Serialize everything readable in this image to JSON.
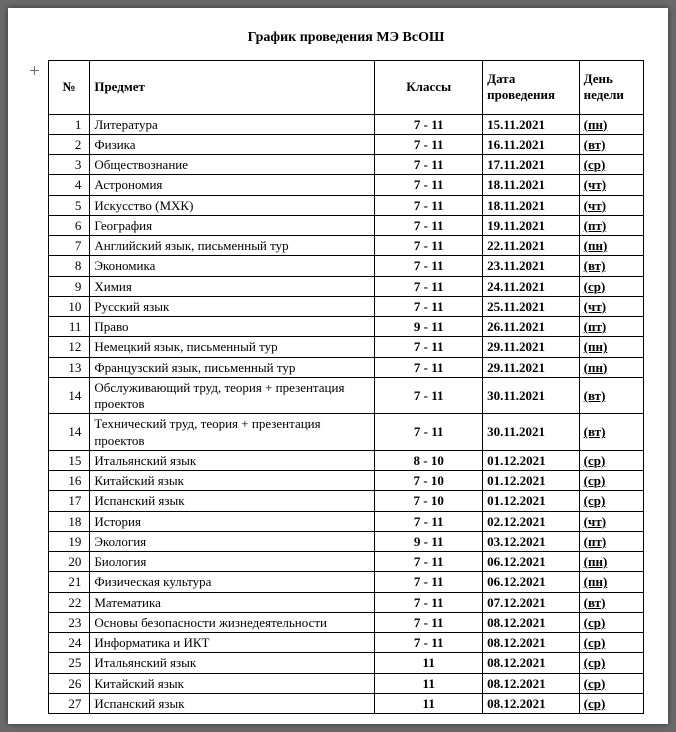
{
  "title": "График проведения МЭ ВсОШ",
  "columns": {
    "num": "№",
    "subject": "Предмет",
    "classes": "Классы",
    "date": "Дата проведения",
    "day": "День недели"
  },
  "rows": [
    {
      "num": "1",
      "subject": "Литература",
      "classes": "7 - 11",
      "date": "15.11.2021",
      "day": "(пн)"
    },
    {
      "num": "2",
      "subject": "Физика",
      "classes": "7 - 11",
      "date": "16.11.2021",
      "day": "(вт)"
    },
    {
      "num": "3",
      "subject": "Обществознание",
      "classes": "7 - 11",
      "date": "17.11.2021",
      "day": "(ср)"
    },
    {
      "num": "4",
      "subject": "Астрономия",
      "classes": "7 - 11",
      "date": "18.11.2021",
      "day": "(чт)"
    },
    {
      "num": "5",
      "subject": "Искусство (МХК)",
      "classes": "7 - 11",
      "date": "18.11.2021",
      "day": "(чт)"
    },
    {
      "num": "6",
      "subject": "География",
      "classes": "7 - 11",
      "date": "19.11.2021",
      "day": "(пт)"
    },
    {
      "num": "7",
      "subject": "Английский язык, письменный тур",
      "classes": "7 - 11",
      "date": "22.11.2021",
      "day": "(пн)"
    },
    {
      "num": "8",
      "subject": "Экономика",
      "classes": "7 - 11",
      "date": "23.11.2021",
      "day": "(вт)"
    },
    {
      "num": "9",
      "subject": "Химия",
      "classes": "7 - 11",
      "date": "24.11.2021",
      "day": "(ср)"
    },
    {
      "num": "10",
      "subject": "Русский язык",
      "classes": "7 - 11",
      "date": "25.11.2021",
      "day": "(чт)"
    },
    {
      "num": "11",
      "subject": "Право",
      "classes": "9 - 11",
      "date": "26.11.2021",
      "day": "(пт)"
    },
    {
      "num": "12",
      "subject": "Немецкий язык, письменный тур",
      "classes": "7 - 11",
      "date": "29.11.2021",
      "day": "(пн)"
    },
    {
      "num": "13",
      "subject": "Французский язык, письменный тур",
      "classes": "7 - 11",
      "date": "29.11.2021",
      "day": "(пн)"
    },
    {
      "num": "14",
      "subject": "Обслуживающий труд, теория + презентация проектов",
      "classes": "7 - 11",
      "date": "30.11.2021",
      "day": "(вт)"
    },
    {
      "num": "14",
      "subject": "Технический труд, теория + презентация проектов",
      "classes": "7 - 11",
      "date": "30.11.2021",
      "day": "(вт)"
    },
    {
      "num": "15",
      "subject": "Итальянский язык",
      "classes": "8 - 10",
      "date": "01.12.2021",
      "day": "(ср)"
    },
    {
      "num": "16",
      "subject": "Китайский язык",
      "classes": "7 - 10",
      "date": "01.12.2021",
      "day": "(ср)"
    },
    {
      "num": "17",
      "subject": "Испанский язык",
      "classes": "7 - 10",
      "date": "01.12.2021",
      "day": "(ср)"
    },
    {
      "num": "18",
      "subject": "История",
      "classes": "7 - 11",
      "date": "02.12.2021",
      "day": "(чт)"
    },
    {
      "num": "19",
      "subject": "Экология",
      "classes": "9 - 11",
      "date": "03.12.2021",
      "day": "(пт)"
    },
    {
      "num": "20",
      "subject": "Биология",
      "classes": "7 - 11",
      "date": "06.12.2021",
      "day": "(пн)"
    },
    {
      "num": "21",
      "subject": "Физическая культура",
      "classes": "7 - 11",
      "date": "06.12.2021",
      "day": "(пн)"
    },
    {
      "num": "22",
      "subject": "Математика",
      "classes": "7 - 11",
      "date": "07.12.2021",
      "day": "(вт)"
    },
    {
      "num": "23",
      "subject": "Основы безопасности жизнедеятельности",
      "classes": "7 - 11",
      "date": "08.12.2021",
      "day": "(ср)"
    },
    {
      "num": "24",
      "subject": "Информатика и ИКТ",
      "classes": "7 - 11",
      "date": "08.12.2021",
      "day": "(ср)"
    },
    {
      "num": "25",
      "subject": "Итальянский язык",
      "classes": "11",
      "date": "08.12.2021",
      "day": "(ср)"
    },
    {
      "num": "26",
      "subject": "Китайский язык",
      "classes": "11",
      "date": "08.12.2021",
      "day": "(ср)"
    },
    {
      "num": "27",
      "subject": "Испанский язык",
      "classes": "11",
      "date": "08.12.2021",
      "day": "(ср)"
    }
  ]
}
